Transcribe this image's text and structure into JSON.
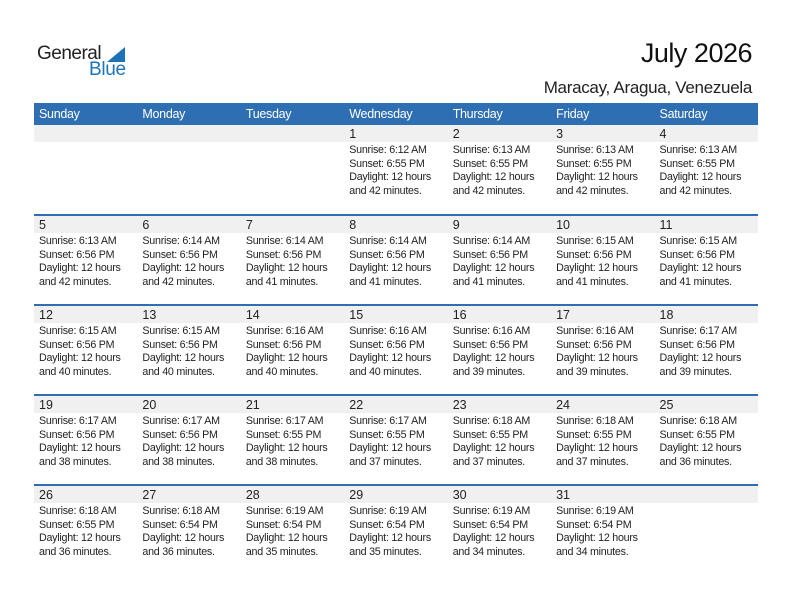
{
  "logo": {
    "text_general": "General",
    "text_blue": "Blue"
  },
  "title": "July 2026",
  "location": "Maracay, Aragua, Venezuela",
  "weekdays": [
    "Sunday",
    "Monday",
    "Tuesday",
    "Wednesday",
    "Thursday",
    "Friday",
    "Saturday"
  ],
  "colors": {
    "header": "#2e6eb2",
    "band": "#f0f0f0",
    "logo_blue": "#1d72b8"
  },
  "weeks": [
    [
      null,
      null,
      null,
      {
        "day": "1",
        "sunrise": "Sunrise: 6:12 AM",
        "sunset": "Sunset: 6:55 PM",
        "daylight": "Daylight: 12 hours and 42 minutes."
      },
      {
        "day": "2",
        "sunrise": "Sunrise: 6:13 AM",
        "sunset": "Sunset: 6:55 PM",
        "daylight": "Daylight: 12 hours and 42 minutes."
      },
      {
        "day": "3",
        "sunrise": "Sunrise: 6:13 AM",
        "sunset": "Sunset: 6:55 PM",
        "daylight": "Daylight: 12 hours and 42 minutes."
      },
      {
        "day": "4",
        "sunrise": "Sunrise: 6:13 AM",
        "sunset": "Sunset: 6:55 PM",
        "daylight": "Daylight: 12 hours and 42 minutes."
      }
    ],
    [
      {
        "day": "5",
        "sunrise": "Sunrise: 6:13 AM",
        "sunset": "Sunset: 6:56 PM",
        "daylight": "Daylight: 12 hours and 42 minutes."
      },
      {
        "day": "6",
        "sunrise": "Sunrise: 6:14 AM",
        "sunset": "Sunset: 6:56 PM",
        "daylight": "Daylight: 12 hours and 42 minutes."
      },
      {
        "day": "7",
        "sunrise": "Sunrise: 6:14 AM",
        "sunset": "Sunset: 6:56 PM",
        "daylight": "Daylight: 12 hours and 41 minutes."
      },
      {
        "day": "8",
        "sunrise": "Sunrise: 6:14 AM",
        "sunset": "Sunset: 6:56 PM",
        "daylight": "Daylight: 12 hours and 41 minutes."
      },
      {
        "day": "9",
        "sunrise": "Sunrise: 6:14 AM",
        "sunset": "Sunset: 6:56 PM",
        "daylight": "Daylight: 12 hours and 41 minutes."
      },
      {
        "day": "10",
        "sunrise": "Sunrise: 6:15 AM",
        "sunset": "Sunset: 6:56 PM",
        "daylight": "Daylight: 12 hours and 41 minutes."
      },
      {
        "day": "11",
        "sunrise": "Sunrise: 6:15 AM",
        "sunset": "Sunset: 6:56 PM",
        "daylight": "Daylight: 12 hours and 41 minutes."
      }
    ],
    [
      {
        "day": "12",
        "sunrise": "Sunrise: 6:15 AM",
        "sunset": "Sunset: 6:56 PM",
        "daylight": "Daylight: 12 hours and 40 minutes."
      },
      {
        "day": "13",
        "sunrise": "Sunrise: 6:15 AM",
        "sunset": "Sunset: 6:56 PM",
        "daylight": "Daylight: 12 hours and 40 minutes."
      },
      {
        "day": "14",
        "sunrise": "Sunrise: 6:16 AM",
        "sunset": "Sunset: 6:56 PM",
        "daylight": "Daylight: 12 hours and 40 minutes."
      },
      {
        "day": "15",
        "sunrise": "Sunrise: 6:16 AM",
        "sunset": "Sunset: 6:56 PM",
        "daylight": "Daylight: 12 hours and 40 minutes."
      },
      {
        "day": "16",
        "sunrise": "Sunrise: 6:16 AM",
        "sunset": "Sunset: 6:56 PM",
        "daylight": "Daylight: 12 hours and 39 minutes."
      },
      {
        "day": "17",
        "sunrise": "Sunrise: 6:16 AM",
        "sunset": "Sunset: 6:56 PM",
        "daylight": "Daylight: 12 hours and 39 minutes."
      },
      {
        "day": "18",
        "sunrise": "Sunrise: 6:17 AM",
        "sunset": "Sunset: 6:56 PM",
        "daylight": "Daylight: 12 hours and 39 minutes."
      }
    ],
    [
      {
        "day": "19",
        "sunrise": "Sunrise: 6:17 AM",
        "sunset": "Sunset: 6:56 PM",
        "daylight": "Daylight: 12 hours and 38 minutes."
      },
      {
        "day": "20",
        "sunrise": "Sunrise: 6:17 AM",
        "sunset": "Sunset: 6:56 PM",
        "daylight": "Daylight: 12 hours and 38 minutes."
      },
      {
        "day": "21",
        "sunrise": "Sunrise: 6:17 AM",
        "sunset": "Sunset: 6:55 PM",
        "daylight": "Daylight: 12 hours and 38 minutes."
      },
      {
        "day": "22",
        "sunrise": "Sunrise: 6:17 AM",
        "sunset": "Sunset: 6:55 PM",
        "daylight": "Daylight: 12 hours and 37 minutes."
      },
      {
        "day": "23",
        "sunrise": "Sunrise: 6:18 AM",
        "sunset": "Sunset: 6:55 PM",
        "daylight": "Daylight: 12 hours and 37 minutes."
      },
      {
        "day": "24",
        "sunrise": "Sunrise: 6:18 AM",
        "sunset": "Sunset: 6:55 PM",
        "daylight": "Daylight: 12 hours and 37 minutes."
      },
      {
        "day": "25",
        "sunrise": "Sunrise: 6:18 AM",
        "sunset": "Sunset: 6:55 PM",
        "daylight": "Daylight: 12 hours and 36 minutes."
      }
    ],
    [
      {
        "day": "26",
        "sunrise": "Sunrise: 6:18 AM",
        "sunset": "Sunset: 6:55 PM",
        "daylight": "Daylight: 12 hours and 36 minutes."
      },
      {
        "day": "27",
        "sunrise": "Sunrise: 6:18 AM",
        "sunset": "Sunset: 6:54 PM",
        "daylight": "Daylight: 12 hours and 36 minutes."
      },
      {
        "day": "28",
        "sunrise": "Sunrise: 6:19 AM",
        "sunset": "Sunset: 6:54 PM",
        "daylight": "Daylight: 12 hours and 35 minutes."
      },
      {
        "day": "29",
        "sunrise": "Sunrise: 6:19 AM",
        "sunset": "Sunset: 6:54 PM",
        "daylight": "Daylight: 12 hours and 35 minutes."
      },
      {
        "day": "30",
        "sunrise": "Sunrise: 6:19 AM",
        "sunset": "Sunset: 6:54 PM",
        "daylight": "Daylight: 12 hours and 34 minutes."
      },
      {
        "day": "31",
        "sunrise": "Sunrise: 6:19 AM",
        "sunset": "Sunset: 6:54 PM",
        "daylight": "Daylight: 12 hours and 34 minutes."
      },
      null
    ]
  ]
}
